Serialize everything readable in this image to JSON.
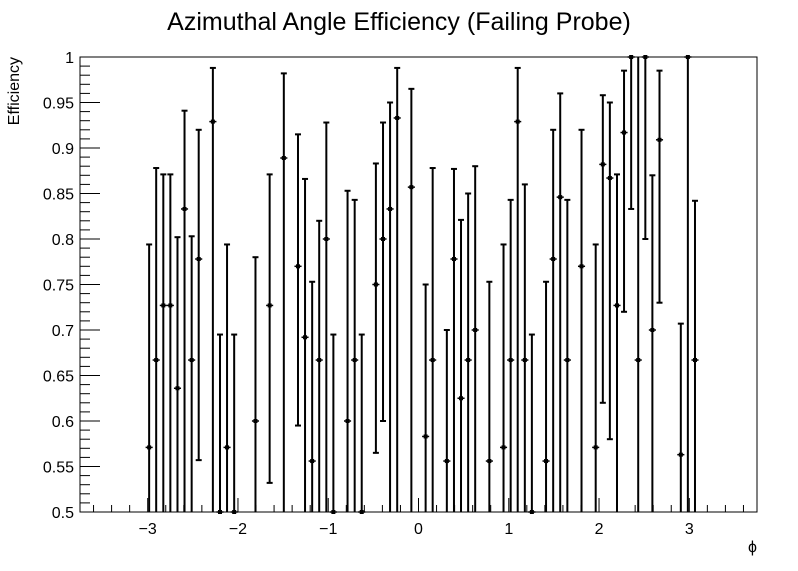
{
  "chart_data": {
    "type": "scatter",
    "title": "Azimuthal Angle Efficiency (Failing Probe)",
    "xlabel": "ϕ",
    "ylabel": "Efficiency",
    "xlim": [
      -3.75,
      3.75
    ],
    "ylim": [
      0.5,
      1.0
    ],
    "x_ticks": [
      {
        "value": -3,
        "label": "−3"
      },
      {
        "value": -2,
        "label": "−2"
      },
      {
        "value": -1,
        "label": "−1"
      },
      {
        "value": 0,
        "label": "0"
      },
      {
        "value": 1,
        "label": "1"
      },
      {
        "value": 2,
        "label": "2"
      },
      {
        "value": 3,
        "label": "3"
      }
    ],
    "y_ticks": [
      {
        "value": 0.5,
        "label": "0.5"
      },
      {
        "value": 0.55,
        "label": "0.55"
      },
      {
        "value": 0.6,
        "label": "0.6"
      },
      {
        "value": 0.65,
        "label": "0.65"
      },
      {
        "value": 0.7,
        "label": "0.7"
      },
      {
        "value": 0.75,
        "label": "0.75"
      },
      {
        "value": 0.8,
        "label": "0.8"
      },
      {
        "value": 0.85,
        "label": "0.85"
      },
      {
        "value": 0.9,
        "label": "0.9"
      },
      {
        "value": 0.95,
        "label": "0.95"
      },
      {
        "value": 1.0,
        "label": "1"
      }
    ],
    "grid": false,
    "legend": "none",
    "bin_width": 0.0785,
    "series": [
      {
        "marker_color": "#000000",
        "points": [
          {
            "x": -2.984,
            "y": 0.571,
            "low": 0.5,
            "high": 0.794
          },
          {
            "x": -2.906,
            "y": 0.667,
            "low": 0.5,
            "high": 0.878
          },
          {
            "x": -2.827,
            "y": 0.727,
            "low": 0.5,
            "high": 0.871
          },
          {
            "x": -2.749,
            "y": 0.727,
            "low": 0.5,
            "high": 0.871
          },
          {
            "x": -2.67,
            "y": 0.636,
            "low": 0.5,
            "high": 0.802
          },
          {
            "x": -2.592,
            "y": 0.833,
            "low": 0.5,
            "high": 0.941
          },
          {
            "x": -2.513,
            "y": 0.667,
            "low": 0.5,
            "high": 0.803
          },
          {
            "x": -2.435,
            "y": 0.778,
            "low": 0.557,
            "high": 0.92
          },
          {
            "x": -2.278,
            "y": 0.929,
            "low": 0.5,
            "high": 0.988
          },
          {
            "x": -2.199,
            "y": 0.5,
            "low": 0.5,
            "high": 0.695
          },
          {
            "x": -2.121,
            "y": 0.571,
            "low": 0.5,
            "high": 0.794
          },
          {
            "x": -2.042,
            "y": 0.5,
            "low": 0.5,
            "high": 0.695
          },
          {
            "x": -1.806,
            "y": 0.6,
            "low": 0.5,
            "high": 0.78
          },
          {
            "x": -1.649,
            "y": 0.727,
            "low": 0.532,
            "high": 0.871
          },
          {
            "x": -1.492,
            "y": 0.889,
            "low": 0.5,
            "high": 0.982
          },
          {
            "x": -1.335,
            "y": 0.77,
            "low": 0.595,
            "high": 0.915
          },
          {
            "x": -1.257,
            "y": 0.692,
            "low": 0.5,
            "high": 0.866
          },
          {
            "x": -1.178,
            "y": 0.556,
            "low": 0.5,
            "high": 0.753
          },
          {
            "x": -1.1,
            "y": 0.667,
            "low": 0.5,
            "high": 0.82
          },
          {
            "x": -1.021,
            "y": 0.8,
            "low": 0.5,
            "high": 0.928
          },
          {
            "x": -0.943,
            "y": 0.5,
            "low": 0.5,
            "high": 0.695
          },
          {
            "x": -0.786,
            "y": 0.6,
            "low": 0.5,
            "high": 0.853
          },
          {
            "x": -0.707,
            "y": 0.667,
            "low": 0.5,
            "high": 0.843
          },
          {
            "x": -0.629,
            "y": 0.5,
            "low": 0.5,
            "high": 0.695
          },
          {
            "x": -0.472,
            "y": 0.75,
            "low": 0.565,
            "high": 0.883
          },
          {
            "x": -0.393,
            "y": 0.8,
            "low": 0.6,
            "high": 0.928
          },
          {
            "x": -0.315,
            "y": 0.833,
            "low": 0.5,
            "high": 0.95
          },
          {
            "x": -0.236,
            "y": 0.933,
            "low": 0.5,
            "high": 0.988
          },
          {
            "x": -0.079,
            "y": 0.857,
            "low": 0.5,
            "high": 0.965
          },
          {
            "x": 0.079,
            "y": 0.583,
            "low": 0.5,
            "high": 0.75
          },
          {
            "x": 0.157,
            "y": 0.667,
            "low": 0.5,
            "high": 0.878
          },
          {
            "x": 0.314,
            "y": 0.556,
            "low": 0.5,
            "high": 0.7
          },
          {
            "x": 0.393,
            "y": 0.778,
            "low": 0.5,
            "high": 0.877
          },
          {
            "x": 0.471,
            "y": 0.625,
            "low": 0.5,
            "high": 0.821
          },
          {
            "x": 0.55,
            "y": 0.667,
            "low": 0.5,
            "high": 0.85
          },
          {
            "x": 0.628,
            "y": 0.7,
            "low": 0.5,
            "high": 0.88
          },
          {
            "x": 0.785,
            "y": 0.556,
            "low": 0.5,
            "high": 0.753
          },
          {
            "x": 0.942,
            "y": 0.571,
            "low": 0.5,
            "high": 0.794
          },
          {
            "x": 1.021,
            "y": 0.667,
            "low": 0.5,
            "high": 0.843
          },
          {
            "x": 1.099,
            "y": 0.929,
            "low": 0.5,
            "high": 0.988
          },
          {
            "x": 1.178,
            "y": 0.667,
            "low": 0.5,
            "high": 0.86
          },
          {
            "x": 1.256,
            "y": 0.5,
            "low": 0.5,
            "high": 0.695
          },
          {
            "x": 1.413,
            "y": 0.556,
            "low": 0.5,
            "high": 0.753
          },
          {
            "x": 1.492,
            "y": 0.778,
            "low": 0.5,
            "high": 0.92
          },
          {
            "x": 1.57,
            "y": 0.846,
            "low": 0.5,
            "high": 0.96
          },
          {
            "x": 1.649,
            "y": 0.667,
            "low": 0.5,
            "high": 0.843
          },
          {
            "x": 1.806,
            "y": 0.77,
            "low": 0.5,
            "high": 0.92
          },
          {
            "x": 1.963,
            "y": 0.571,
            "low": 0.5,
            "high": 0.794
          },
          {
            "x": 2.042,
            "y": 0.882,
            "low": 0.62,
            "high": 0.958
          },
          {
            "x": 2.12,
            "y": 0.867,
            "low": 0.58,
            "high": 0.95
          },
          {
            "x": 2.199,
            "y": 0.727,
            "low": 0.5,
            "high": 0.871
          },
          {
            "x": 2.277,
            "y": 0.917,
            "low": 0.72,
            "high": 0.985
          },
          {
            "x": 2.356,
            "y": 1.0,
            "low": 0.833,
            "high": 1.0
          },
          {
            "x": 2.434,
            "y": 0.667,
            "low": 0.5,
            "high": 1.0
          },
          {
            "x": 2.513,
            "y": 1.0,
            "low": 0.8,
            "high": 1.0
          },
          {
            "x": 2.591,
            "y": 0.7,
            "low": 0.5,
            "high": 0.87
          },
          {
            "x": 2.67,
            "y": 0.909,
            "low": 0.73,
            "high": 0.985
          },
          {
            "x": 2.906,
            "y": 0.563,
            "low": 0.5,
            "high": 0.707
          },
          {
            "x": 2.984,
            "y": 1.0,
            "low": 0.5,
            "high": 1.0
          },
          {
            "x": 3.063,
            "y": 0.667,
            "low": 0.5,
            "high": 0.842
          }
        ]
      }
    ]
  }
}
